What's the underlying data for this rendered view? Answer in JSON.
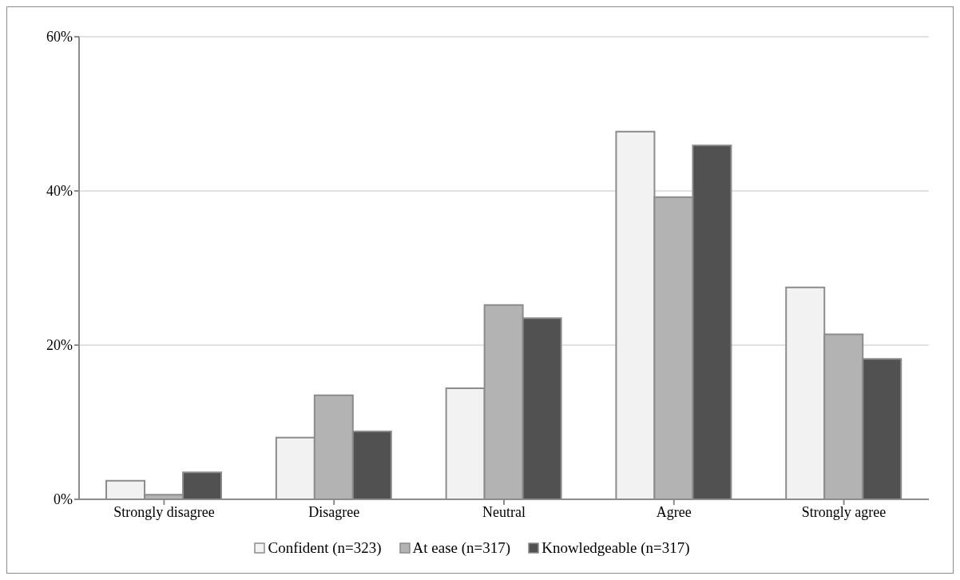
{
  "chart_data": {
    "type": "bar",
    "categories": [
      "Strongly disagree",
      "Disagree",
      "Neutral",
      "Agree",
      "Strongly agree"
    ],
    "series": [
      {
        "name": "Confident (n=323)",
        "color": "#f2f2f2",
        "values": [
          2.4,
          8.0,
          14.4,
          47.7,
          27.5
        ]
      },
      {
        "name": "At ease (n=317)",
        "color": "#b3b3b3",
        "values": [
          0.6,
          13.5,
          25.2,
          39.2,
          21.4
        ]
      },
      {
        "name": "Knowledgeable (n=317)",
        "color": "#515151",
        "values": [
          3.5,
          8.8,
          23.5,
          45.9,
          18.2
        ]
      }
    ],
    "ylim": [
      0,
      60
    ],
    "yticks": [
      {
        "value": 0,
        "label": "0%"
      },
      {
        "value": 20,
        "label": "20%"
      },
      {
        "value": 40,
        "label": "40%"
      },
      {
        "value": 60,
        "label": "60%"
      }
    ],
    "grid": "y",
    "legend": "bottom"
  }
}
